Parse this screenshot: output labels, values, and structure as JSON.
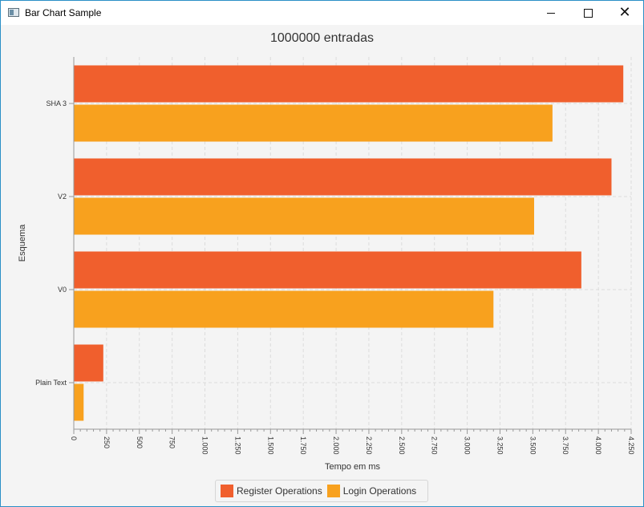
{
  "window": {
    "title": "Bar Chart Sample",
    "controls": {
      "minimize": "minimize",
      "maximize": "maximize",
      "close": "close"
    }
  },
  "colors": {
    "register": "#f05f2d",
    "login": "#f8a11e",
    "grid": "#dcdcdc",
    "axis": "#999999"
  },
  "chart_data": {
    "type": "bar",
    "orientation": "horizontal",
    "title": "1000000 entradas",
    "xlabel": "Tempo em ms",
    "ylabel": "Esquema",
    "categories": [
      "SHA 3",
      "V2",
      "V0",
      "Plain Text"
    ],
    "series": [
      {
        "name": "Register Operations",
        "values": [
          4190,
          4100,
          3870,
          225
        ]
      },
      {
        "name": "Login Operations",
        "values": [
          3650,
          3510,
          3200,
          75
        ]
      }
    ],
    "xlim": [
      0,
      4250
    ],
    "x_ticks": [
      "0",
      "250",
      "500",
      "750",
      "1.000",
      "1.250",
      "1.500",
      "1.750",
      "2.000",
      "2.250",
      "2.500",
      "2.750",
      "3.000",
      "3.250",
      "3.500",
      "3.750",
      "4.000",
      "4.250"
    ],
    "grid": true,
    "legend_position": "bottom"
  }
}
